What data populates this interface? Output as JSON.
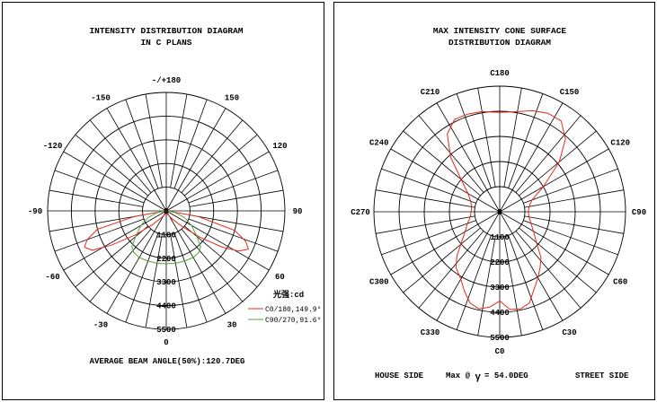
{
  "colors": {
    "c0": "#e8281f",
    "c90": "#5aa33a",
    "grid": "#000000"
  },
  "chart_data": [
    {
      "type": "polar",
      "title": [
        "INTENSITY DISTRIBUTION DIAGRAM",
        "IN C PLANS"
      ],
      "angle_labels": [
        {
          "deg": 0,
          "text": "0"
        },
        {
          "deg": 30,
          "text": "30"
        },
        {
          "deg": 60,
          "text": "60"
        },
        {
          "deg": 90,
          "text": "90"
        },
        {
          "deg": 120,
          "text": "120"
        },
        {
          "deg": 150,
          "text": "150"
        },
        {
          "deg": 180,
          "text": "-/+180"
        },
        {
          "deg": -150,
          "text": "-150"
        },
        {
          "deg": -120,
          "text": "-120"
        },
        {
          "deg": -90,
          "text": "-90"
        },
        {
          "deg": -60,
          "text": "-60"
        },
        {
          "deg": -30,
          "text": "-30"
        }
      ],
      "radial_labels": [
        "0",
        "1100",
        "2200",
        "3300",
        "4400",
        "5500"
      ],
      "rmax": 5500,
      "unit_label": "光强:cd",
      "series": [
        {
          "name": "C0/180,149.9°",
          "color_key": "c0",
          "points": [
            [
              -85,
              80
            ],
            [
              -80,
              1500
            ],
            [
              -75,
              3300
            ],
            [
              -70,
              3900
            ],
            [
              -66,
              4150
            ],
            [
              -62,
              3900
            ],
            [
              -58,
              3000
            ],
            [
              -52,
              1800
            ],
            [
              -45,
              900
            ],
            [
              -35,
              380
            ],
            [
              -20,
              160
            ],
            [
              0,
              120
            ],
            [
              20,
              160
            ],
            [
              35,
              420
            ],
            [
              45,
              1000
            ],
            [
              52,
              2000
            ],
            [
              57,
              3100
            ],
            [
              61,
              3850
            ],
            [
              65,
              4200
            ],
            [
              69,
              3950
            ],
            [
              74,
              3300
            ],
            [
              80,
              1500
            ],
            [
              86,
              80
            ]
          ]
        },
        {
          "name": "C90/270,91.6°",
          "color_key": "c90",
          "points": [
            [
              -86,
              80
            ],
            [
              -80,
              400
            ],
            [
              -70,
              900
            ],
            [
              -60,
              1350
            ],
            [
              -50,
              1850
            ],
            [
              -44,
              2300
            ],
            [
              -38,
              2450
            ],
            [
              -30,
              2500
            ],
            [
              -20,
              2480
            ],
            [
              -10,
              2470
            ],
            [
              0,
              2460
            ],
            [
              10,
              2470
            ],
            [
              20,
              2480
            ],
            [
              30,
              2500
            ],
            [
              38,
              2450
            ],
            [
              44,
              2300
            ],
            [
              50,
              1850
            ],
            [
              60,
              1350
            ],
            [
              70,
              900
            ],
            [
              80,
              400
            ],
            [
              86,
              80
            ]
          ]
        }
      ],
      "footer": "AVERAGE BEAM ANGLE(50%):120.7DEG"
    },
    {
      "type": "polar",
      "title": [
        "MAX INTENSITY CONE SURFACE",
        "DISTRIBUTION DIAGRAM"
      ],
      "angle_labels": [
        {
          "deg": 0,
          "text": "C0"
        },
        {
          "deg": 30,
          "text": "C30"
        },
        {
          "deg": 60,
          "text": "C60"
        },
        {
          "deg": 90,
          "text": "C90"
        },
        {
          "deg": 120,
          "text": "C120"
        },
        {
          "deg": 150,
          "text": "C150"
        },
        {
          "deg": 180,
          "text": "C180"
        },
        {
          "deg": 210,
          "text": "C210"
        },
        {
          "deg": 240,
          "text": "C240"
        },
        {
          "deg": 270,
          "text": "C270"
        },
        {
          "deg": 300,
          "text": "C300"
        },
        {
          "deg": 330,
          "text": "C330"
        }
      ],
      "radial_labels": [
        "0",
        "1100",
        "2200",
        "3300",
        "4400",
        "5500"
      ],
      "rmax": 5500,
      "series": [
        {
          "name": "Max @ γ = 54.0DEG",
          "color_key": "c0",
          "points": [
            [
              0,
              3900
            ],
            [
              6,
              4300
            ],
            [
              12,
              4350
            ],
            [
              18,
              4200
            ],
            [
              24,
              3700
            ],
            [
              30,
              3350
            ],
            [
              36,
              3000
            ],
            [
              42,
              2700
            ],
            [
              50,
              2100
            ],
            [
              60,
              1700
            ],
            [
              70,
              1450
            ],
            [
              80,
              1300
            ],
            [
              90,
              1250
            ],
            [
              100,
              1300
            ],
            [
              110,
              1500
            ],
            [
              120,
              2200
            ],
            [
              130,
              3400
            ],
            [
              138,
              4300
            ],
            [
              146,
              4800
            ],
            [
              154,
              4800
            ],
            [
              162,
              4650
            ],
            [
              170,
              4450
            ],
            [
              180,
              4350
            ],
            [
              190,
              4450
            ],
            [
              198,
              4500
            ],
            [
              206,
              4500
            ],
            [
              214,
              4100
            ],
            [
              222,
              3200
            ],
            [
              230,
              2200
            ],
            [
              240,
              1600
            ],
            [
              250,
              1350
            ],
            [
              260,
              1250
            ],
            [
              270,
              1250
            ],
            [
              280,
              1300
            ],
            [
              290,
              1500
            ],
            [
              300,
              1750
            ],
            [
              308,
              2100
            ],
            [
              316,
              2700
            ],
            [
              322,
              3100
            ],
            [
              330,
              3400
            ],
            [
              336,
              3800
            ],
            [
              342,
              4200
            ],
            [
              348,
              4350
            ],
            [
              354,
              4200
            ],
            [
              360,
              3900
            ]
          ]
        }
      ],
      "footer": {
        "house": "HOUSE SIDE",
        "max_prefix": "Max @",
        "gamma": "γ",
        "max_value": "= 54.0DEG",
        "street": "STREET SIDE"
      }
    }
  ]
}
